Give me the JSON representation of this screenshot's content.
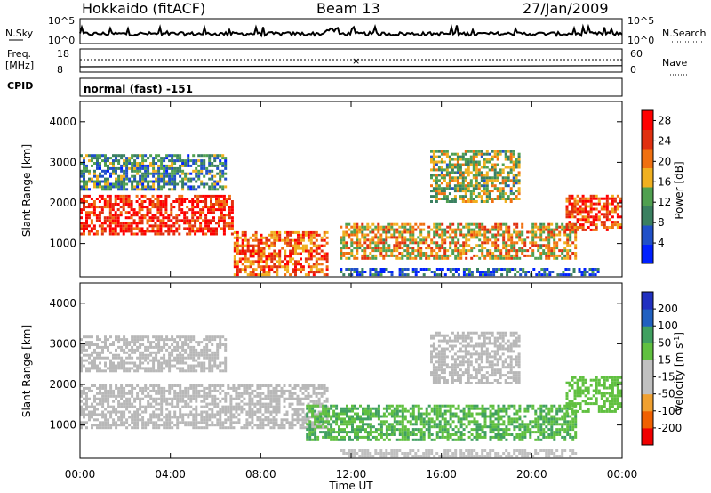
{
  "header": {
    "station": "Hokkaido (fitACF)",
    "beam": "Beam 13",
    "date": "27/Jan/2009"
  },
  "top_panels": {
    "nsky_label": "N.Sky",
    "nsky_ticks": [
      "10^5",
      "10^0"
    ],
    "nsearch_label": "N.Search",
    "nsearch_ticks": [
      "10^5",
      "10^0"
    ],
    "freq_label_1": "Freq.",
    "freq_label_2": "[MHz]",
    "freq_ticks": [
      "18",
      "8"
    ],
    "nave_label": "Nave",
    "nave_ticks": [
      "60",
      "0"
    ],
    "cpid_label": "CPID",
    "cpid_value": "normal (fast) -151"
  },
  "colors": {
    "power_scale": [
      "#0020ff",
      "#2050c8",
      "#3a8060",
      "#50a050",
      "#f0b020",
      "#f07010",
      "#e03010",
      "#ff0000"
    ],
    "velocity_scale": [
      "#f00000",
      "#f06000",
      "#f0a030",
      "#c0c0c0",
      "#c0c0c0",
      "#60c040",
      "#40a060",
      "#2060c0",
      "#2030c0"
    ],
    "ground_scatter": "#b8b8b8"
  },
  "chart_data": [
    {
      "type": "heatmap",
      "name": "power",
      "title": "",
      "xlabel": "",
      "ylabel": "Slant Range [km]",
      "xlim": [
        "00:00",
        "24:00"
      ],
      "ylim": [
        180,
        4500
      ],
      "x_ticks": [
        "00:00",
        "04:00",
        "08:00",
        "12:00",
        "16:00",
        "20:00",
        "00:00"
      ],
      "y_ticks": [
        "1000",
        "2000",
        "3000",
        "4000"
      ],
      "colorbar": {
        "label": "Power [dB]",
        "ticks": [
          "4",
          "8",
          "12",
          "16",
          "20",
          "24",
          "28"
        ],
        "range": [
          0,
          30
        ]
      },
      "regions": [
        {
          "t": [
            0.0,
            6.8
          ],
          "r": [
            1200,
            2200
          ],
          "value": 26
        },
        {
          "t": [
            0.0,
            6.5
          ],
          "r": [
            2300,
            3200
          ],
          "value": 10
        },
        {
          "t": [
            6.8,
            11.0
          ],
          "r": [
            200,
            1300
          ],
          "value": 22
        },
        {
          "t": [
            11.5,
            22.0
          ],
          "r": [
            600,
            1500
          ],
          "value": 18
        },
        {
          "t": [
            11.5,
            23.0
          ],
          "r": [
            200,
            400
          ],
          "value": 6
        },
        {
          "t": [
            15.5,
            19.5
          ],
          "r": [
            2000,
            3300
          ],
          "value": 14
        },
        {
          "t": [
            21.5,
            24.0
          ],
          "r": [
            1300,
            2200
          ],
          "value": 24
        }
      ]
    },
    {
      "type": "heatmap",
      "name": "velocity",
      "title": "",
      "xlabel": "Time UT",
      "ylabel": "Slant Range [km]",
      "xlim": [
        "00:00",
        "24:00"
      ],
      "ylim": [
        180,
        4500
      ],
      "x_ticks": [
        "00:00",
        "04:00",
        "08:00",
        "12:00",
        "16:00",
        "20:00",
        "00:00"
      ],
      "y_ticks": [
        "1000",
        "2000",
        "3000",
        "4000"
      ],
      "colorbar": {
        "label": "Velocity [m s^-1]",
        "ticks": [
          "200",
          "100",
          "50",
          "15",
          "-15",
          "-50",
          "-100",
          "-200"
        ],
        "range": [
          -250,
          250
        ]
      },
      "regions": [
        {
          "t": [
            0.0,
            11.0
          ],
          "r": [
            900,
            2000
          ],
          "value": 0
        },
        {
          "t": [
            0.0,
            6.5
          ],
          "r": [
            2300,
            3200
          ],
          "value": 0
        },
        {
          "t": [
            10.0,
            22.0
          ],
          "r": [
            600,
            1500
          ],
          "value": 80
        },
        {
          "t": [
            11.5,
            22.0
          ],
          "r": [
            200,
            400
          ],
          "value": -40
        },
        {
          "t": [
            15.5,
            19.5
          ],
          "r": [
            2000,
            3300
          ],
          "value": 0
        },
        {
          "t": [
            21.5,
            24.0
          ],
          "r": [
            1300,
            2200
          ],
          "value": 60
        }
      ]
    }
  ]
}
